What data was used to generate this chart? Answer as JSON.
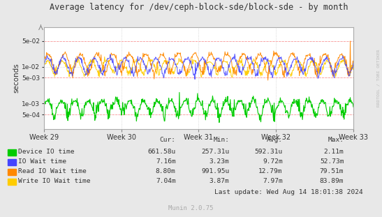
{
  "title": "Average latency for /dev/ceph-block-sde/block-sde - by month",
  "ylabel": "seconds",
  "background_color": "#e8e8e8",
  "plot_bg_color": "#ffffff",
  "grid_color": "#cccccc",
  "watermark": "RRDTOOL / TOBI OETIKER",
  "munin_version": "Munin 2.0.75",
  "x_labels": [
    "Week 29",
    "Week 30",
    "Week 31",
    "Week 32",
    "Week 33"
  ],
  "legend": [
    {
      "label": "Device IO time",
      "color": "#00cc00"
    },
    {
      "label": "IO Wait time",
      "color": "#4444ff"
    },
    {
      "label": "Read IO Wait time",
      "color": "#ff8800"
    },
    {
      "label": "Write IO Wait time",
      "color": "#ffcc00"
    }
  ],
  "legend_data": {
    "headers": [
      "Cur:",
      "Min:",
      "Avg:",
      "Max:"
    ],
    "rows": [
      [
        "661.58u",
        "257.31u",
        "592.31u",
        "2.11m"
      ],
      [
        "7.16m",
        "3.23m",
        "9.72m",
        "52.73m"
      ],
      [
        "8.80m",
        "991.95u",
        "12.79m",
        "79.51m"
      ],
      [
        "7.04m",
        "3.87m",
        "7.97m",
        "83.89m"
      ]
    ]
  },
  "last_update": "Last update: Wed Aug 14 18:01:38 2024",
  "yticks": [
    0.0005,
    0.001,
    0.005,
    0.01,
    0.05
  ],
  "ytick_labels": [
    "5e-04",
    "1e-03",
    "5e-03",
    "1e-02",
    "5e-02"
  ],
  "ylim_min": 0.0002,
  "ylim_max": 0.12,
  "red_hlines": [
    0.05,
    0.005,
    0.0005
  ],
  "num_points": 700,
  "seed": 42,
  "spike_val": 0.05
}
